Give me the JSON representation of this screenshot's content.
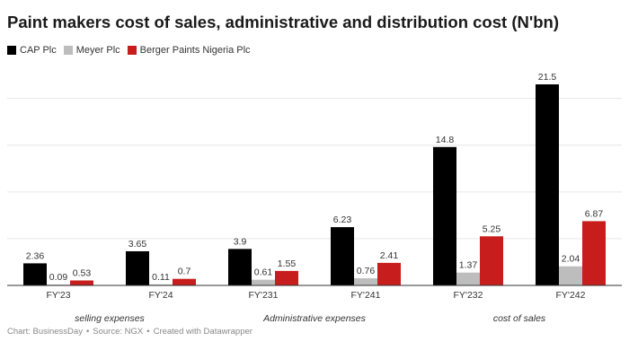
{
  "chart_data": {
    "type": "bar",
    "title": "Paint makers cost of sales, administrative and distribution cost (N'bn)",
    "categories": [
      "FY'23",
      "FY'24",
      "FY'231",
      "FY'241",
      "FY'232",
      "FY'242"
    ],
    "groups": [
      {
        "label": "selling expenses",
        "categories": [
          "FY'23",
          "FY'24"
        ]
      },
      {
        "label": "Administrative expenses",
        "categories": [
          "FY'231",
          "FY'241"
        ]
      },
      {
        "label": "cost of sales",
        "categories": [
          "FY'232",
          "FY'242"
        ]
      }
    ],
    "series": [
      {
        "name": "CAP Plc",
        "color": "#000000",
        "values": [
          2.36,
          3.65,
          3.9,
          6.23,
          14.8,
          21.5
        ]
      },
      {
        "name": "Meyer Plc",
        "color": "#bdbdbd",
        "values": [
          0.09,
          0.11,
          0.61,
          0.76,
          1.37,
          2.04
        ]
      },
      {
        "name": "Berger Paints Nigeria Plc",
        "color": "#c71e1d",
        "values": [
          0.53,
          0.7,
          1.55,
          2.41,
          5.25,
          6.87
        ]
      }
    ],
    "ylim": [
      0,
      21.5
    ],
    "grid": true,
    "xlabel": "",
    "ylabel": ""
  },
  "footer": {
    "chart_by": "Chart: BusinessDay",
    "source": "Source: NGX",
    "created_with": "Created with Datawrapper",
    "separator": "•"
  }
}
